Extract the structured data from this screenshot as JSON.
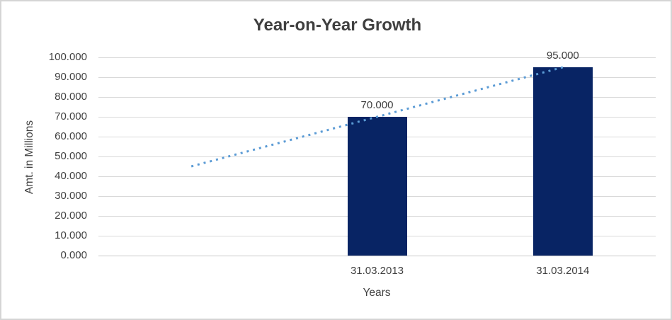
{
  "chart_data": {
    "type": "bar",
    "title": "Year-on-Year Growth",
    "xlabel": "Years",
    "ylabel": "Amt. in Millions",
    "categories": [
      "31.03.2013",
      "31.03.2014"
    ],
    "values": [
      70,
      95
    ],
    "data_labels": [
      "70.000",
      "95.000"
    ],
    "y_tick_labels": [
      "100.000",
      "90.000",
      "80.000",
      "70.000",
      "60.000",
      "50.000",
      "40.000",
      "30.000",
      "20.000",
      "10.000",
      "0.000"
    ],
    "ylim": [
      0,
      100
    ],
    "y_step": 10,
    "grid": true,
    "legend": "none",
    "category_slots": 3,
    "bar_slots": [
      1,
      2
    ],
    "trendline": {
      "style": "dotted",
      "color": "#5b9bd5",
      "start": {
        "slot": 0,
        "value": 45
      },
      "end": {
        "slot": 2,
        "value": 95
      }
    },
    "colors": {
      "bar": "#082464",
      "gridline": "#d9d9d9",
      "axis_line": "#c9c9c9",
      "text": "#404040",
      "title": "#3f3f3f",
      "frame_border": "#d5d5d5"
    }
  }
}
